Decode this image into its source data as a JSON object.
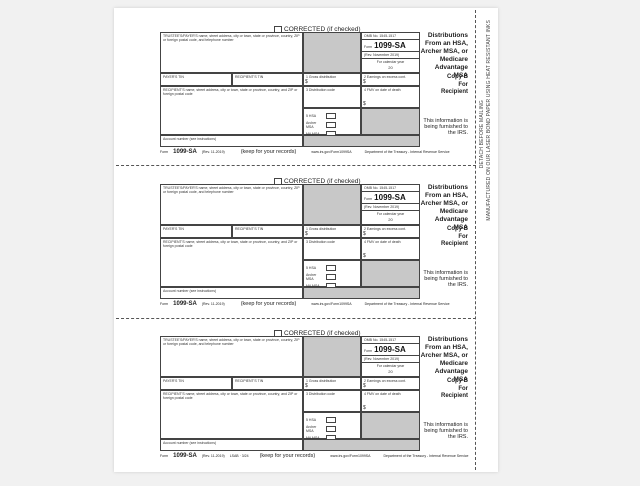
{
  "form": {
    "corrected": "CORRECTED (if checked)",
    "trustee_label": "TRUSTEE'S/PAYER'S name, street address, city or town, state or province, country, ZIP or foreign postal code, and telephone number",
    "omb": "OMB No. 1545-1517",
    "form_prefix": "Form",
    "form_number": "1099-SA",
    "rev": "(Rev. November 2019)",
    "calendar_year": "For calendar year",
    "year": "20",
    "title": "Distributions From an HSA, Archer MSA, or Medicare Advantage MSA",
    "payer_tin": "PAYER'S TIN",
    "recipient_tin": "RECIPIENT'S TIN",
    "box1": "1  Gross distribution",
    "box2": "2  Earnings on excess cont.",
    "box3": "3  Distribution code",
    "box4": "4  FMV on date of death",
    "box5": "5  HSA",
    "archer": "Archer MSA",
    "ma": "MA MSA",
    "dollar": "$",
    "recipient_name": "RECIPIENT'S name, street address, city or town, state or province, country, and ZIP or foreign postal code",
    "account": "Account number (see instructions)",
    "copy_b": "Copy B",
    "for": "For",
    "recipient": "Recipient",
    "furnished": "This information is being furnished to the IRS.",
    "footer_form": "Form",
    "footer_rev": "(Rev. 11-2019)",
    "keep": "(keep for your records)",
    "url": "www.irs.gov/Form1099SA",
    "dept": "Department of the Treasury - Internal Revenue Service"
  },
  "footer_code": "LSAB  ·  3/24",
  "side_text": {
    "detach": "DETACH BEFORE MAILING",
    "manufactured": "MANUFACTURED ON OUR LASER BOND PAPER USING HEAT RESISTANT INKS"
  }
}
